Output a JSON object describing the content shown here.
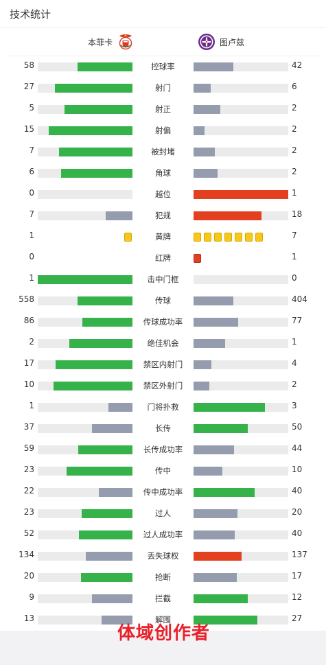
{
  "page_title": "技术统计",
  "teams": {
    "home": {
      "name": "本菲卡",
      "crest_icon": "benfica-crest-icon"
    },
    "away": {
      "name": "图卢兹",
      "crest_icon": "toulouse-crest-icon"
    }
  },
  "colors": {
    "green": "#36b24a",
    "gray": "#949cae",
    "red": "#e2401f",
    "yellow": "#f7c818",
    "track": "#ebebeb",
    "watermark": "#e8212b"
  },
  "stats": [
    {
      "key": "possession",
      "label": "控球率",
      "home": "58",
      "away": "42",
      "home_fraction": 0.58,
      "away_fraction": 0.42,
      "home_color": "green",
      "away_color": "gray"
    },
    {
      "key": "shots",
      "label": "射门",
      "home": "27",
      "away": "6",
      "home_fraction": 0.818,
      "away_fraction": 0.182,
      "home_color": "green",
      "away_color": "gray"
    },
    {
      "key": "shots-on-target",
      "label": "射正",
      "home": "5",
      "away": "2",
      "home_fraction": 0.714,
      "away_fraction": 0.286,
      "home_color": "green",
      "away_color": "gray"
    },
    {
      "key": "shots-off-target",
      "label": "射偏",
      "home": "15",
      "away": "2",
      "home_fraction": 0.882,
      "away_fraction": 0.118,
      "home_color": "green",
      "away_color": "gray"
    },
    {
      "key": "blocked-shots",
      "label": "被封堵",
      "home": "7",
      "away": "2",
      "home_fraction": 0.778,
      "away_fraction": 0.222,
      "home_color": "green",
      "away_color": "gray"
    },
    {
      "key": "corners",
      "label": "角球",
      "home": "6",
      "away": "2",
      "home_fraction": 0.75,
      "away_fraction": 0.25,
      "home_color": "green",
      "away_color": "gray"
    },
    {
      "key": "offsides",
      "label": "越位",
      "home": "0",
      "away": "1",
      "home_fraction": 0.0,
      "away_fraction": 1.0,
      "home_color": "gray",
      "away_color": "red"
    },
    {
      "key": "fouls",
      "label": "犯规",
      "home": "7",
      "away": "18",
      "home_fraction": 0.28,
      "away_fraction": 0.72,
      "home_color": "gray",
      "away_color": "red"
    },
    {
      "key": "yellow-cards",
      "label": "黄牌",
      "home": "1",
      "away": "7",
      "type": "cards",
      "card_color": "yellow"
    },
    {
      "key": "red-cards",
      "label": "红牌",
      "home": "0",
      "away": "1",
      "type": "cards",
      "card_color": "red"
    },
    {
      "key": "woodwork",
      "label": "击中门框",
      "home": "1",
      "away": "0",
      "home_fraction": 1.0,
      "away_fraction": 0.0,
      "home_color": "green",
      "away_color": "gray"
    },
    {
      "key": "passes",
      "label": "传球",
      "home": "558",
      "away": "404",
      "home_fraction": 0.58,
      "away_fraction": 0.42,
      "home_color": "green",
      "away_color": "gray"
    },
    {
      "key": "pass-accuracy",
      "label": "传球成功率",
      "home": "86",
      "away": "77",
      "home_fraction": 0.528,
      "away_fraction": 0.472,
      "home_color": "green",
      "away_color": "gray"
    },
    {
      "key": "big-chances",
      "label": "绝佳机会",
      "home": "2",
      "away": "1",
      "home_fraction": 0.667,
      "away_fraction": 0.333,
      "home_color": "green",
      "away_color": "gray"
    },
    {
      "key": "shots-inside-box",
      "label": "禁区内射门",
      "home": "17",
      "away": "4",
      "home_fraction": 0.81,
      "away_fraction": 0.19,
      "home_color": "green",
      "away_color": "gray"
    },
    {
      "key": "shots-outside-box",
      "label": "禁区外射门",
      "home": "10",
      "away": "2",
      "home_fraction": 0.833,
      "away_fraction": 0.167,
      "home_color": "green",
      "away_color": "gray"
    },
    {
      "key": "saves",
      "label": "门将扑救",
      "home": "1",
      "away": "3",
      "home_fraction": 0.25,
      "away_fraction": 0.75,
      "home_color": "gray",
      "away_color": "green"
    },
    {
      "key": "long-balls",
      "label": "长传",
      "home": "37",
      "away": "50",
      "home_fraction": 0.425,
      "away_fraction": 0.575,
      "home_color": "gray",
      "away_color": "green"
    },
    {
      "key": "long-ball-accuracy",
      "label": "长传成功率",
      "home": "59",
      "away": "44",
      "home_fraction": 0.573,
      "away_fraction": 0.427,
      "home_color": "green",
      "away_color": "gray"
    },
    {
      "key": "crosses",
      "label": "传中",
      "home": "23",
      "away": "10",
      "home_fraction": 0.697,
      "away_fraction": 0.303,
      "home_color": "green",
      "away_color": "gray"
    },
    {
      "key": "cross-accuracy",
      "label": "传中成功率",
      "home": "22",
      "away": "40",
      "home_fraction": 0.355,
      "away_fraction": 0.645,
      "home_color": "gray",
      "away_color": "green"
    },
    {
      "key": "dribbles",
      "label": "过人",
      "home": "23",
      "away": "20",
      "home_fraction": 0.535,
      "away_fraction": 0.465,
      "home_color": "green",
      "away_color": "gray"
    },
    {
      "key": "dribble-success",
      "label": "过人成功率",
      "home": "52",
      "away": "40",
      "home_fraction": 0.565,
      "away_fraction": 0.435,
      "home_color": "green",
      "away_color": "gray"
    },
    {
      "key": "possession-lost",
      "label": "丢失球权",
      "home": "134",
      "away": "137",
      "home_fraction": 0.494,
      "away_fraction": 0.506,
      "home_color": "gray",
      "away_color": "red"
    },
    {
      "key": "tackles",
      "label": "抢断",
      "home": "20",
      "away": "17",
      "home_fraction": 0.541,
      "away_fraction": 0.459,
      "home_color": "green",
      "away_color": "gray"
    },
    {
      "key": "interceptions",
      "label": "拦截",
      "home": "9",
      "away": "12",
      "home_fraction": 0.429,
      "away_fraction": 0.571,
      "home_color": "gray",
      "away_color": "green"
    },
    {
      "key": "clearances",
      "label": "解围",
      "home": "13",
      "away": "27",
      "home_fraction": 0.325,
      "away_fraction": 0.675,
      "home_color": "gray",
      "away_color": "green"
    }
  ],
  "watermark": "体域创作者"
}
